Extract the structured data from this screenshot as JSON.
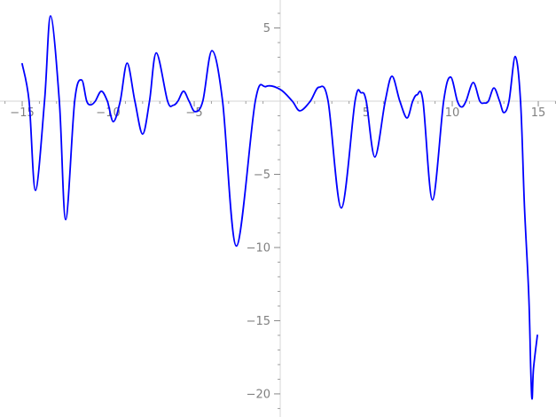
{
  "figure": {
    "background": "#ffffff",
    "axis_line_color": "#d6d6d6",
    "major_tick_color": "#878787",
    "minor_tick_color": "#9f9f9f",
    "label_color": "#808080",
    "curve_color": "#0000ff",
    "curve_width": 1.8,
    "label_font_size": 13
  },
  "chart_data": {
    "type": "line",
    "title": "",
    "xlabel": "",
    "ylabel": "",
    "grid": false,
    "legend_position": "none",
    "xlim": [
      -16.29,
      16.03
    ],
    "ylim": [
      -21.58,
      6.91
    ],
    "minor_tick_step": 1,
    "x_major_ticks": [
      {
        "value": -15,
        "label": "−15"
      },
      {
        "value": -10,
        "label": "−10"
      },
      {
        "value": -5,
        "label": "−5"
      },
      {
        "value": 5,
        "label": "5"
      },
      {
        "value": 10,
        "label": "10"
      },
      {
        "value": 15,
        "label": "15"
      }
    ],
    "y_major_ticks": [
      {
        "value": 5,
        "label": "5"
      },
      {
        "value": -5,
        "label": "−5"
      },
      {
        "value": -10,
        "label": "−10"
      },
      {
        "value": -15,
        "label": "−15"
      },
      {
        "value": -20,
        "label": "−20"
      }
    ],
    "series": [
      {
        "color": "#0000ff",
        "points": [
          [
            -15.0,
            2.55
          ],
          [
            -14.6,
            0
          ],
          [
            -14.23,
            -6.1
          ],
          [
            -13.7,
            0
          ],
          [
            -13.35,
            5.82
          ],
          [
            -12.84,
            0
          ],
          [
            -12.47,
            -8.1
          ],
          [
            -11.95,
            0
          ],
          [
            -11.55,
            1.45
          ],
          [
            -11.25,
            0
          ],
          [
            -11.0,
            -0.25
          ],
          [
            -10.75,
            0
          ],
          [
            -10.4,
            0.68
          ],
          [
            -10.05,
            0
          ],
          [
            -9.7,
            -1.4
          ],
          [
            -9.3,
            0
          ],
          [
            -8.9,
            2.6
          ],
          [
            -8.45,
            0
          ],
          [
            -8.0,
            -2.25
          ],
          [
            -7.6,
            0
          ],
          [
            -7.2,
            3.3
          ],
          [
            -6.55,
            0
          ],
          [
            -6.22,
            -0.28
          ],
          [
            -5.95,
            0
          ],
          [
            -5.62,
            0.68
          ],
          [
            -5.3,
            0
          ],
          [
            -4.95,
            -0.72
          ],
          [
            -4.5,
            0
          ],
          [
            -3.97,
            3.45
          ],
          [
            -3.35,
            0
          ],
          [
            -2.55,
            -9.9
          ],
          [
            -1.45,
            0
          ],
          [
            -0.83,
            1.0
          ],
          [
            0.0,
            0.8
          ],
          [
            0.7,
            0
          ],
          [
            1.15,
            -0.66
          ],
          [
            1.75,
            0
          ],
          [
            2.25,
            0.95
          ],
          [
            2.78,
            0
          ],
          [
            3.55,
            -7.3
          ],
          [
            4.35,
            0
          ],
          [
            4.7,
            0.57
          ],
          [
            5.0,
            0
          ],
          [
            5.5,
            -3.82
          ],
          [
            6.1,
            0
          ],
          [
            6.5,
            1.7
          ],
          [
            6.95,
            0
          ],
          [
            7.37,
            -1.15
          ],
          [
            7.7,
            0
          ],
          [
            7.95,
            0.43
          ],
          [
            8.3,
            0
          ],
          [
            8.85,
            -6.75
          ],
          [
            9.5,
            0
          ],
          [
            9.9,
            1.65
          ],
          [
            10.3,
            0
          ],
          [
            10.55,
            -0.4
          ],
          [
            10.8,
            0
          ],
          [
            11.22,
            1.27
          ],
          [
            11.6,
            0
          ],
          [
            11.86,
            -0.13
          ],
          [
            12.1,
            0
          ],
          [
            12.42,
            0.9
          ],
          [
            12.75,
            0
          ],
          [
            13.0,
            -0.78
          ],
          [
            13.3,
            0
          ],
          [
            13.66,
            3.05
          ],
          [
            13.97,
            0
          ],
          [
            14.2,
            -7.3
          ],
          [
            14.45,
            -13.3
          ],
          [
            14.56,
            -18.3
          ],
          [
            14.64,
            -20.35
          ],
          [
            14.72,
            -18.3
          ],
          [
            14.95,
            -16.0
          ]
        ]
      }
    ]
  }
}
